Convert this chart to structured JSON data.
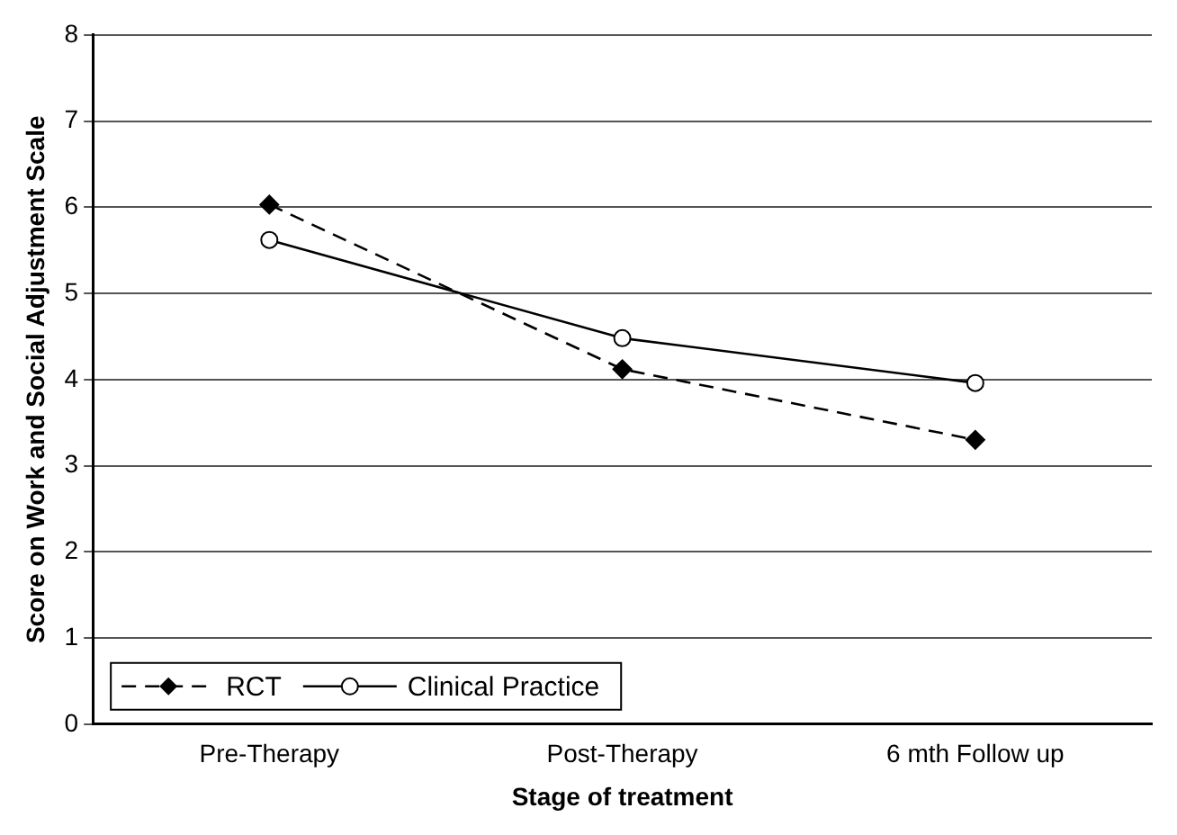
{
  "chart_data": {
    "type": "line",
    "xlabel": "Stage of treatment",
    "ylabel": "Score on Work and Social Adjustment Scale",
    "categories": [
      "Pre-Therapy",
      "Post-Therapy",
      "6 mth Follow up"
    ],
    "series": [
      {
        "name": "RCT",
        "color": "#000000",
        "values": [
          6.03,
          4.12,
          3.3
        ],
        "marker": "diamond",
        "line_style": "dashed"
      },
      {
        "name": "Clinical Practice",
        "color": "#000000",
        "values": [
          5.62,
          4.48,
          3.96
        ],
        "marker": "circle",
        "line_style": "solid"
      }
    ],
    "ylim": [
      0,
      8
    ],
    "yticks": [
      0,
      1,
      2,
      3,
      4,
      5,
      6,
      7,
      8
    ],
    "grid": "y",
    "legend": "bottom left"
  }
}
